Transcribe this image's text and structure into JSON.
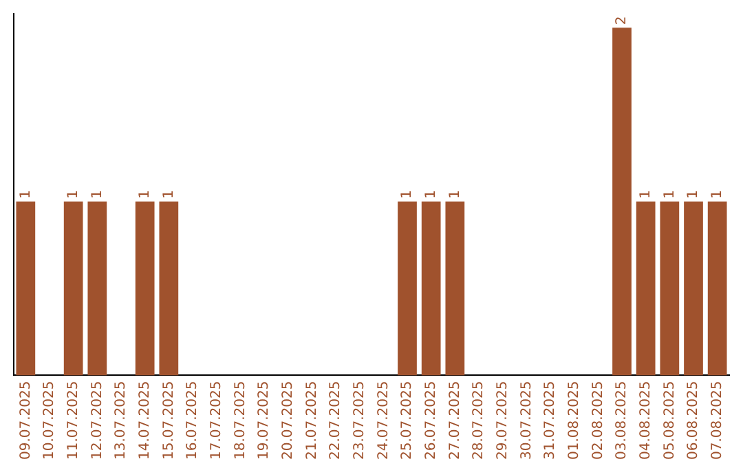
{
  "chart_data": {
    "type": "bar",
    "categories": [
      "09.07.2025",
      "10.07.2025",
      "11.07.2025",
      "12.07.2025",
      "13.07.2025",
      "14.07.2025",
      "15.07.2025",
      "16.07.2025",
      "17.07.2025",
      "18.07.2025",
      "19.07.2025",
      "20.07.2025",
      "21.07.2025",
      "22.07.2025",
      "23.07.2025",
      "24.07.2025",
      "25.07.2025",
      "26.07.2025",
      "27.07.2025",
      "28.07.2025",
      "29.07.2025",
      "30.07.2025",
      "31.07.2025",
      "01.08.2025",
      "02.08.2025",
      "03.08.2025",
      "04.08.2025",
      "05.08.2025",
      "06.08.2025",
      "07.08.2025"
    ],
    "values": [
      1,
      0,
      1,
      1,
      0,
      1,
      1,
      0,
      0,
      0,
      0,
      0,
      0,
      0,
      0,
      0,
      1,
      1,
      1,
      0,
      0,
      0,
      0,
      0,
      0,
      2,
      1,
      1,
      1,
      1
    ],
    "value_labels": [
      "1",
      null,
      "1",
      "1",
      null,
      "1",
      "1",
      null,
      null,
      null,
      null,
      null,
      null,
      null,
      null,
      null,
      "1",
      "1",
      "1",
      null,
      null,
      null,
      null,
      null,
      null,
      "2",
      "1",
      "1",
      "1",
      "1"
    ],
    "color": "#a0522d",
    "ylim": [
      0,
      2.08
    ],
    "grid": false,
    "legend": false
  }
}
